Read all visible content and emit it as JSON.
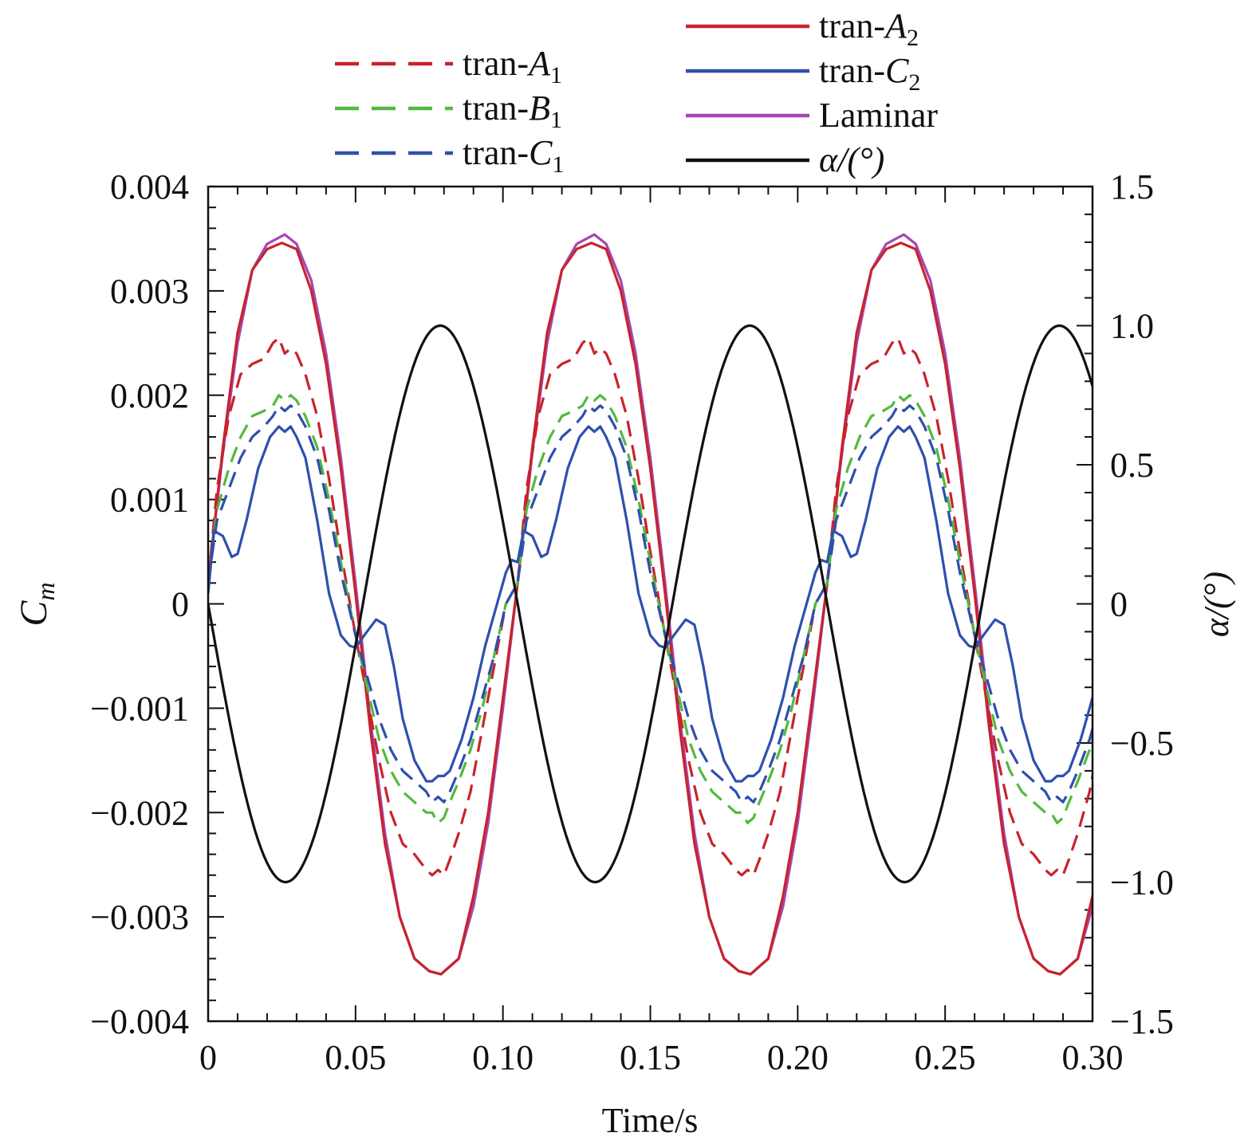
{
  "chart_data": {
    "type": "line",
    "xlabel": "Time/s",
    "ylabel": {
      "base": "C",
      "sub": "m"
    },
    "y2label": "α/(°)",
    "xlim": [
      0,
      0.3
    ],
    "ylim": [
      -0.004,
      0.004
    ],
    "y2lim": [
      -1.5,
      1.5
    ],
    "x_ticks": [
      "0",
      "0.05",
      "0.10",
      "0.15",
      "0.20",
      "0.25",
      "0.30"
    ],
    "y_ticks": [
      "0.004",
      "0.003",
      "0.002",
      "0.001",
      "0",
      "−0.001",
      "−0.002",
      "−0.003",
      "−0.004"
    ],
    "y2_ticks": [
      "1.5",
      "1.0",
      "0.5",
      "0",
      "−0.5",
      "−1.0",
      "−1.5"
    ],
    "period": 0.105,
    "grid": false,
    "legend_placement": "top",
    "series": [
      {
        "id": "laminar",
        "legend": {
          "base": "Laminar",
          "sub": ""
        },
        "color": "#a447b4",
        "dash": false,
        "axis": "left",
        "x": [
          0,
          0.005,
          0.01,
          0.015,
          0.02,
          0.026,
          0.03,
          0.035,
          0.04,
          0.045,
          0.05,
          0.055,
          0.06,
          0.065,
          0.07,
          0.075,
          0.079,
          0.085,
          0.09,
          0.095,
          0.1,
          0.105
        ],
        "y": [
          0.0002,
          0.00145,
          0.0025,
          0.0032,
          0.00345,
          0.00354,
          0.00345,
          0.0031,
          0.0024,
          0.0014,
          0.0002,
          -0.0011,
          -0.0022,
          -0.003,
          -0.0034,
          -0.00352,
          -0.00355,
          -0.0034,
          -0.0029,
          -0.0021,
          -0.001,
          0.0002
        ]
      },
      {
        "id": "tran-A2",
        "legend": {
          "base": "tran-",
          "ital": "A",
          "sub": "2"
        },
        "color": "#c8232c",
        "dash": false,
        "axis": "left",
        "x": [
          0,
          0.005,
          0.01,
          0.015,
          0.02,
          0.025,
          0.03,
          0.035,
          0.04,
          0.045,
          0.05,
          0.055,
          0.06,
          0.065,
          0.07,
          0.075,
          0.079,
          0.085,
          0.09,
          0.095,
          0.1,
          0.105
        ],
        "y": [
          0.0002,
          0.0015,
          0.0026,
          0.0032,
          0.0034,
          0.00346,
          0.0034,
          0.003,
          0.0023,
          0.0013,
          0.0001,
          -0.0012,
          -0.0023,
          -0.003,
          -0.0034,
          -0.00352,
          -0.00355,
          -0.0034,
          -0.0028,
          -0.002,
          -0.0009,
          0.0002
        ]
      },
      {
        "id": "tran-A1",
        "legend": {
          "base": "tran-",
          "ital": "A",
          "sub": "1"
        },
        "color": "#c8232c",
        "dash": true,
        "axis": "left",
        "x": [
          0,
          0.003,
          0.007,
          0.011,
          0.015,
          0.019,
          0.022,
          0.024,
          0.026,
          0.028,
          0.03,
          0.033,
          0.037,
          0.041,
          0.045,
          0.05,
          0.054,
          0.058,
          0.062,
          0.066,
          0.07,
          0.074,
          0.076,
          0.078,
          0.08,
          0.082,
          0.085,
          0.089,
          0.093,
          0.097,
          0.101,
          0.105
        ],
        "y": [
          0.0002,
          0.0011,
          0.0018,
          0.0022,
          0.0023,
          0.00235,
          0.0025,
          0.00255,
          0.0024,
          0.00245,
          0.0024,
          0.0022,
          0.0018,
          0.0012,
          0.0005,
          -0.0003,
          -0.0009,
          -0.0015,
          -0.002,
          -0.0023,
          -0.0024,
          -0.00255,
          -0.0026,
          -0.00255,
          -0.0026,
          -0.00245,
          -0.0022,
          -0.0018,
          -0.0012,
          -0.0006,
          0.0,
          0.0002
        ]
      },
      {
        "id": "tran-B1",
        "legend": {
          "base": "tran-",
          "ital": "B",
          "sub": "1"
        },
        "color": "#53b93f",
        "dash": true,
        "axis": "left",
        "x": [
          0,
          0.003,
          0.007,
          0.011,
          0.015,
          0.019,
          0.022,
          0.024,
          0.026,
          0.028,
          0.03,
          0.033,
          0.037,
          0.041,
          0.045,
          0.05,
          0.054,
          0.058,
          0.062,
          0.066,
          0.07,
          0.074,
          0.076,
          0.078,
          0.08,
          0.082,
          0.085,
          0.089,
          0.093,
          0.097,
          0.101,
          0.105
        ],
        "y": [
          0.0002,
          0.0009,
          0.0013,
          0.0016,
          0.0018,
          0.00185,
          0.0019,
          0.002,
          0.00195,
          0.002,
          0.00195,
          0.0018,
          0.0015,
          0.001,
          0.0004,
          -0.0003,
          -0.0008,
          -0.0013,
          -0.0016,
          -0.0018,
          -0.0019,
          -0.002,
          -0.002,
          -0.0021,
          -0.00205,
          -0.0019,
          -0.0017,
          -0.0014,
          -0.001,
          -0.0005,
          0.0,
          0.0002
        ]
      },
      {
        "id": "tran-C1",
        "legend": {
          "base": "tran-",
          "ital": "C",
          "sub": "1"
        },
        "color": "#2e4fae",
        "dash": true,
        "axis": "left",
        "x": [
          0,
          0.003,
          0.007,
          0.011,
          0.015,
          0.019,
          0.022,
          0.024,
          0.026,
          0.028,
          0.03,
          0.033,
          0.037,
          0.041,
          0.045,
          0.05,
          0.054,
          0.058,
          0.062,
          0.066,
          0.07,
          0.074,
          0.076,
          0.078,
          0.08,
          0.082,
          0.085,
          0.089,
          0.093,
          0.097,
          0.101,
          0.105
        ],
        "y": [
          0.0002,
          0.0008,
          0.0011,
          0.0014,
          0.0016,
          0.0017,
          0.0018,
          0.0019,
          0.00185,
          0.0019,
          0.00185,
          0.0017,
          0.0014,
          0.0009,
          0.0003,
          -0.0003,
          -0.0007,
          -0.0011,
          -0.0014,
          -0.0016,
          -0.0017,
          -0.0018,
          -0.0019,
          -0.00185,
          -0.0019,
          -0.0018,
          -0.0016,
          -0.0013,
          -0.0009,
          -0.0005,
          0.0,
          0.0002
        ]
      },
      {
        "id": "tran-C2",
        "legend": {
          "base": "tran-",
          "ital": "C",
          "sub": "2"
        },
        "color": "#2e4fae",
        "dash": false,
        "axis": "left",
        "x": [
          0,
          0.002,
          0.005,
          0.008,
          0.01,
          0.013,
          0.017,
          0.021,
          0.024,
          0.026,
          0.028,
          0.03,
          0.033,
          0.037,
          0.041,
          0.045,
          0.048,
          0.05,
          0.053,
          0.057,
          0.06,
          0.063,
          0.066,
          0.07,
          0.074,
          0.076,
          0.078,
          0.08,
          0.082,
          0.086,
          0.09,
          0.094,
          0.098,
          0.101,
          0.103,
          0.105
        ],
        "y": [
          0.0001,
          0.0007,
          0.00065,
          0.00045,
          0.00048,
          0.0008,
          0.0013,
          0.0016,
          0.0017,
          0.00165,
          0.0017,
          0.0016,
          0.0014,
          0.0008,
          0.0001,
          -0.0003,
          -0.0004,
          -0.00042,
          -0.0003,
          -0.00015,
          -0.0002,
          -0.0006,
          -0.0011,
          -0.0015,
          -0.0017,
          -0.0017,
          -0.00165,
          -0.00165,
          -0.0016,
          -0.0013,
          -0.0009,
          -0.0004,
          0.0,
          0.0003,
          0.00042,
          0.0004
        ]
      },
      {
        "id": "alpha",
        "legend": {
          "base": "α/(°)",
          "sub": ""
        },
        "color": "#111111",
        "dash": false,
        "axis": "right",
        "function": "alpha = -sin(2π·t/0.105) degrees"
      }
    ]
  }
}
